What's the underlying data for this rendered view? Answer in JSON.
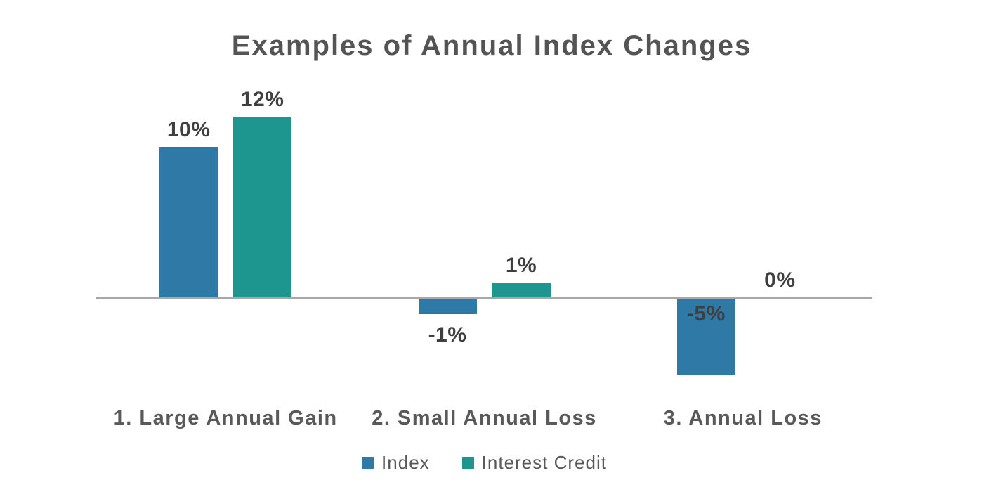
{
  "chart_data": {
    "type": "bar",
    "title": "Examples of Annual Index Changes",
    "categories": [
      "1. Large Annual Gain",
      "2. Small Annual Loss",
      "3. Annual Loss"
    ],
    "series": [
      {
        "name": "Index",
        "color": "#2E79A5",
        "values": [
          10,
          -1,
          -5
        ],
        "data_labels": [
          "10%",
          "-1%",
          "-5%"
        ],
        "label_positions": [
          "above",
          "below",
          "inside-top"
        ]
      },
      {
        "name": "Interest Credit",
        "color": "#1E9690",
        "values": [
          12,
          1,
          0
        ],
        "data_labels": [
          "12%",
          "1%",
          "0%"
        ],
        "label_positions": [
          "above",
          "above",
          "above"
        ]
      }
    ],
    "xlabel": "",
    "ylabel": "",
    "ylim": [
      -6.5,
      13.5
    ],
    "grid": false,
    "axis_baseline_color": "#A8A8A8",
    "legend_position": "bottom"
  },
  "styles": {
    "title_color": "#545454",
    "category_label_color": "#595959",
    "data_label_color": "#3F3F3F",
    "legend_text_color": "#595959",
    "background": "#FFFFFF"
  }
}
